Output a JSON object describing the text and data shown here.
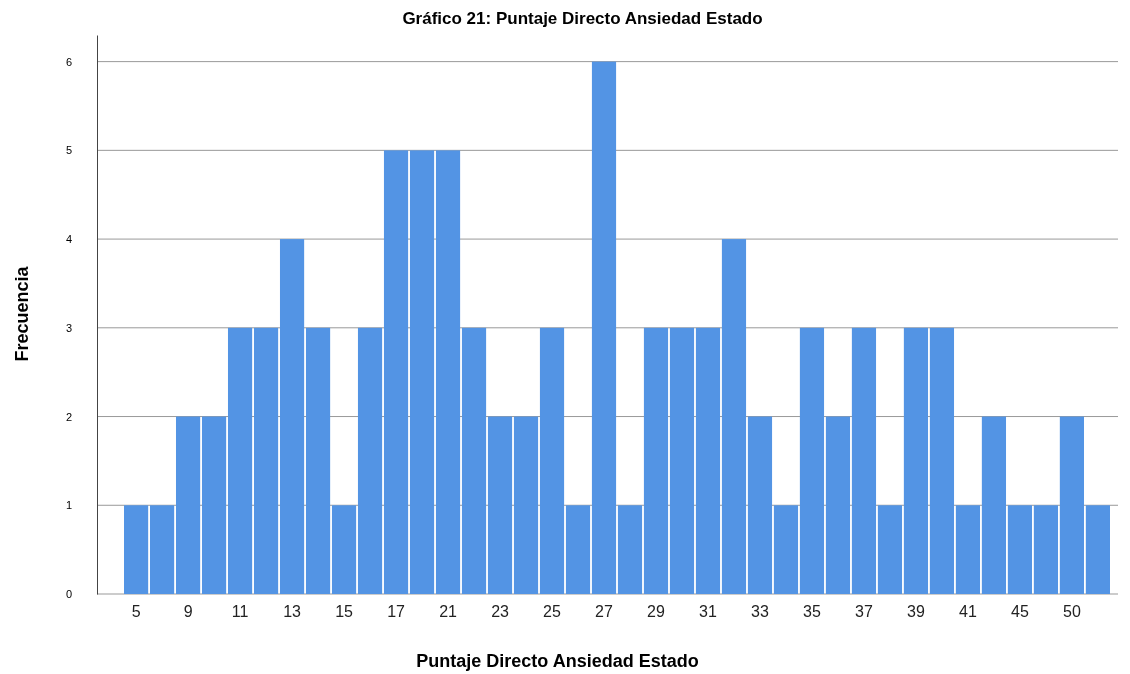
{
  "chart_data": {
    "type": "bar",
    "title": "Gráfico 21: Puntaje Directo Ansiedad Estado",
    "xlabel": "Puntaje Directo Ansiedad Estado",
    "ylabel": "Frecuencia",
    "categories": [
      "5",
      null,
      "9",
      null,
      "11",
      null,
      "13",
      null,
      "15",
      null,
      "17",
      null,
      "21",
      null,
      "23",
      null,
      "25",
      null,
      "27",
      null,
      "29",
      null,
      "31",
      null,
      "33",
      null,
      "35",
      null,
      "37",
      null,
      "39",
      null,
      "41",
      null,
      "45",
      null,
      "50",
      null
    ],
    "values": [
      1,
      1,
      2,
      2,
      3,
      3,
      4,
      3,
      1,
      3,
      5,
      5,
      5,
      3,
      2,
      2,
      3,
      1,
      6,
      1,
      3,
      3,
      3,
      4,
      2,
      1,
      3,
      2,
      3,
      1,
      3,
      3,
      1,
      2,
      1,
      1,
      2,
      1
    ],
    "color": "#5394e4",
    "ylim": [
      0,
      6.3
    ],
    "yticks": [
      0,
      1,
      2,
      3,
      4,
      5,
      6
    ],
    "grid": "y"
  }
}
